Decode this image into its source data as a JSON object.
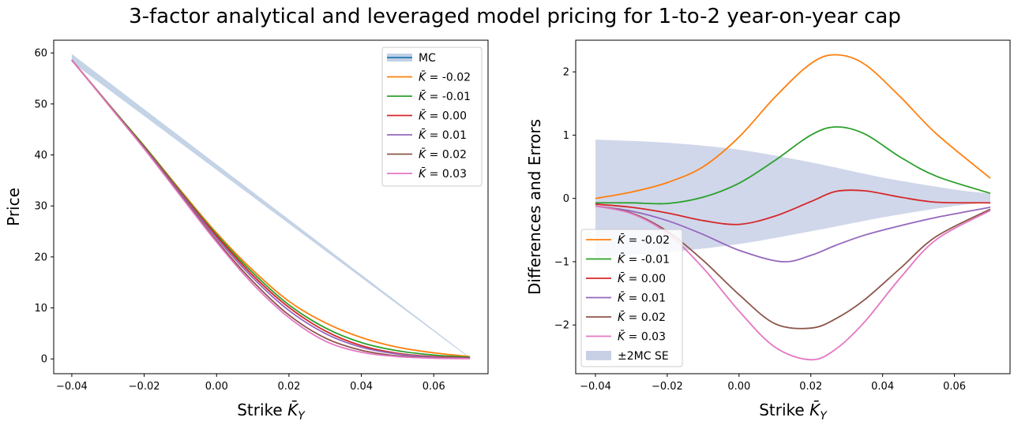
{
  "figure": {
    "title": "3-factor analytical and leveraged model pricing for 1-to-2 year-on-year cap"
  },
  "chart_data": [
    {
      "type": "line",
      "xlabel_prefix": "Strike ",
      "xlabel_sym": "K̄",
      "xlabel_sub": "Y",
      "ylabel": "Price",
      "xlim": [
        -0.045,
        0.075
      ],
      "ylim": [
        -2.9,
        62.5
      ],
      "xticks": [
        -0.04,
        -0.02,
        0.0,
        0.02,
        0.04,
        0.06
      ],
      "xtick_labels": [
        "−0.04",
        "−0.02",
        "0.00",
        "0.02",
        "0.04",
        "0.06"
      ],
      "yticks": [
        0,
        10,
        20,
        30,
        40,
        50,
        60
      ],
      "ytick_labels": [
        "0",
        "10",
        "20",
        "30",
        "40",
        "50",
        "60"
      ],
      "legend_position": "upper right",
      "band": {
        "name": "MC",
        "color": "#b0c4de",
        "line_color": "#1f77b4",
        "x": [
          -0.04,
          0.07
        ],
        "lower": [
          58.2,
          0.1
        ],
        "upper": [
          59.8,
          0.3
        ]
      },
      "series": [
        {
          "name": "K̄ = -0.02",
          "sym": "K̄",
          "eq": " = -0.02",
          "color": "#ff7f0e",
          "x": [
            -0.04,
            -0.03,
            -0.02,
            -0.01,
            0.0,
            0.01,
            0.02,
            0.03,
            0.04,
            0.05,
            0.06,
            0.07
          ],
          "y": [
            58.6,
            50.1,
            41.8,
            33.1,
            24.7,
            17.4,
            11.3,
            7.1,
            4.2,
            2.3,
            1.2,
            0.45
          ]
        },
        {
          "name": "K̄ = -0.01",
          "sym": "K̄",
          "eq": " = -0.01",
          "color": "#2ca02c",
          "x": [
            -0.04,
            -0.03,
            -0.02,
            -0.01,
            0.0,
            0.01,
            0.02,
            0.03,
            0.04,
            0.05,
            0.06,
            0.07
          ],
          "y": [
            58.6,
            50.1,
            41.7,
            32.9,
            24.4,
            16.9,
            10.6,
            6.1,
            3.2,
            1.6,
            0.75,
            0.35
          ]
        },
        {
          "name": "K̄ = 0.00",
          "sym": "K̄",
          "eq": " = 0.00",
          "color": "#d62728",
          "x": [
            -0.04,
            -0.03,
            -0.02,
            -0.01,
            0.0,
            0.01,
            0.02,
            0.03,
            0.04,
            0.05,
            0.06,
            0.07
          ],
          "y": [
            58.6,
            50.0,
            41.5,
            32.7,
            24.1,
            16.4,
            10.1,
            5.5,
            2.6,
            1.1,
            0.45,
            0.2
          ]
        },
        {
          "name": "K̄ = 0.01",
          "sym": "K̄",
          "eq": " = 0.01",
          "color": "#9467bd",
          "x": [
            -0.04,
            -0.03,
            -0.02,
            -0.01,
            0.0,
            0.01,
            0.02,
            0.03,
            0.04,
            0.05,
            0.06,
            0.07
          ],
          "y": [
            58.6,
            50.0,
            41.4,
            32.5,
            23.7,
            15.9,
            9.5,
            5.0,
            2.3,
            0.95,
            0.35,
            0.15
          ]
        },
        {
          "name": "K̄ = 0.02",
          "sym": "K̄",
          "eq": " = 0.02",
          "color": "#8c564b",
          "x": [
            -0.04,
            -0.03,
            -0.02,
            -0.01,
            0.0,
            0.01,
            0.02,
            0.03,
            0.04,
            0.05,
            0.06,
            0.07
          ],
          "y": [
            58.6,
            50.0,
            41.3,
            32.2,
            23.2,
            15.2,
            8.6,
            4.1,
            1.7,
            0.6,
            0.2,
            0.1
          ]
        },
        {
          "name": "K̄ = 0.03",
          "sym": "K̄",
          "eq": " = 0.03",
          "color": "#e377c2",
          "x": [
            -0.04,
            -0.03,
            -0.02,
            -0.01,
            0.0,
            0.01,
            0.02,
            0.03,
            0.04,
            0.05,
            0.06,
            0.07
          ],
          "y": [
            58.6,
            49.9,
            41.2,
            32.0,
            22.9,
            14.7,
            8.1,
            3.5,
            1.3,
            0.45,
            0.15,
            0.05
          ]
        }
      ]
    },
    {
      "type": "line",
      "xlabel_prefix": "Strike ",
      "xlabel_sym": "K̄",
      "xlabel_sub": "Y",
      "ylabel": "Differences and Errors",
      "xlim": [
        -0.0455,
        0.0755
      ],
      "ylim": [
        -2.77,
        2.5
      ],
      "xticks": [
        -0.04,
        -0.02,
        0.0,
        0.02,
        0.04,
        0.06
      ],
      "xtick_labels": [
        "−0.04",
        "−0.02",
        "0.00",
        "0.02",
        "0.04",
        "0.06"
      ],
      "yticks": [
        -2,
        -1,
        0,
        1,
        2
      ],
      "ytick_labels": [
        "−2",
        "−1",
        "0",
        "1",
        "2"
      ],
      "legend_position": "lower left",
      "series": [
        {
          "name": "K̄ = -0.02",
          "sym": "K̄",
          "eq": " = -0.02",
          "color": "#ff7f0e",
          "x": [
            -0.04,
            -0.03,
            -0.02,
            -0.01,
            0.0,
            0.01,
            0.02,
            0.027,
            0.035,
            0.045,
            0.055,
            0.07
          ],
          "y": [
            0.0,
            0.1,
            0.25,
            0.5,
            0.97,
            1.6,
            2.13,
            2.27,
            2.12,
            1.6,
            1.02,
            0.32
          ]
        },
        {
          "name": "K̄ = -0.01",
          "sym": "K̄",
          "eq": " = -0.01",
          "color": "#2ca02c",
          "x": [
            -0.04,
            -0.03,
            -0.02,
            -0.01,
            0.0,
            0.01,
            0.02,
            0.027,
            0.035,
            0.045,
            0.055,
            0.07
          ],
          "y": [
            -0.07,
            -0.07,
            -0.08,
            0.02,
            0.24,
            0.6,
            1.0,
            1.13,
            1.02,
            0.65,
            0.35,
            0.08
          ]
        },
        {
          "name": "K̄ = 0.00",
          "sym": "K̄",
          "eq": " = 0.00",
          "color": "#d62728",
          "x": [
            -0.04,
            -0.03,
            -0.02,
            -0.01,
            0.0,
            0.01,
            0.02,
            0.027,
            0.035,
            0.045,
            0.055,
            0.07
          ],
          "y": [
            -0.09,
            -0.14,
            -0.23,
            -0.35,
            -0.41,
            -0.28,
            -0.05,
            0.11,
            0.12,
            0.02,
            -0.06,
            -0.07
          ]
        },
        {
          "name": "K̄ = 0.01",
          "sym": "K̄",
          "eq": " = 0.01",
          "color": "#9467bd",
          "x": [
            -0.04,
            -0.03,
            -0.02,
            -0.01,
            0.0,
            0.012,
            0.02,
            0.027,
            0.035,
            0.045,
            0.055,
            0.07
          ],
          "y": [
            -0.12,
            -0.2,
            -0.35,
            -0.57,
            -0.82,
            -1.0,
            -0.9,
            -0.74,
            -0.58,
            -0.43,
            -0.3,
            -0.14
          ]
        },
        {
          "name": "K̄ = 0.02",
          "sym": "K̄",
          "eq": " = 0.02",
          "color": "#8c564b",
          "x": [
            -0.04,
            -0.03,
            -0.02,
            -0.01,
            0.0,
            0.01,
            0.02,
            0.027,
            0.035,
            0.045,
            0.055,
            0.07
          ],
          "y": [
            -0.12,
            -0.23,
            -0.52,
            -0.98,
            -1.52,
            -1.98,
            -2.05,
            -1.9,
            -1.6,
            -1.1,
            -0.6,
            -0.17
          ]
        },
        {
          "name": "K̄ = 0.03",
          "sym": "K̄",
          "eq": " = 0.03",
          "color": "#e377c2",
          "x": [
            -0.04,
            -0.03,
            -0.02,
            -0.01,
            0.0,
            0.01,
            0.02,
            0.027,
            0.035,
            0.045,
            0.055,
            0.07
          ],
          "y": [
            -0.12,
            -0.24,
            -0.55,
            -1.1,
            -1.78,
            -2.35,
            -2.55,
            -2.38,
            -1.95,
            -1.25,
            -0.65,
            -0.19
          ]
        }
      ],
      "band": {
        "name": "±2MC SE",
        "color": "#b0bcdc",
        "x": [
          -0.04,
          -0.02,
          0.0,
          0.02,
          0.04,
          0.06,
          0.07
        ],
        "lower": [
          -0.93,
          -0.85,
          -0.72,
          -0.52,
          -0.3,
          -0.12,
          -0.06
        ],
        "upper": [
          0.93,
          0.88,
          0.77,
          0.57,
          0.33,
          0.14,
          0.08
        ]
      }
    }
  ]
}
